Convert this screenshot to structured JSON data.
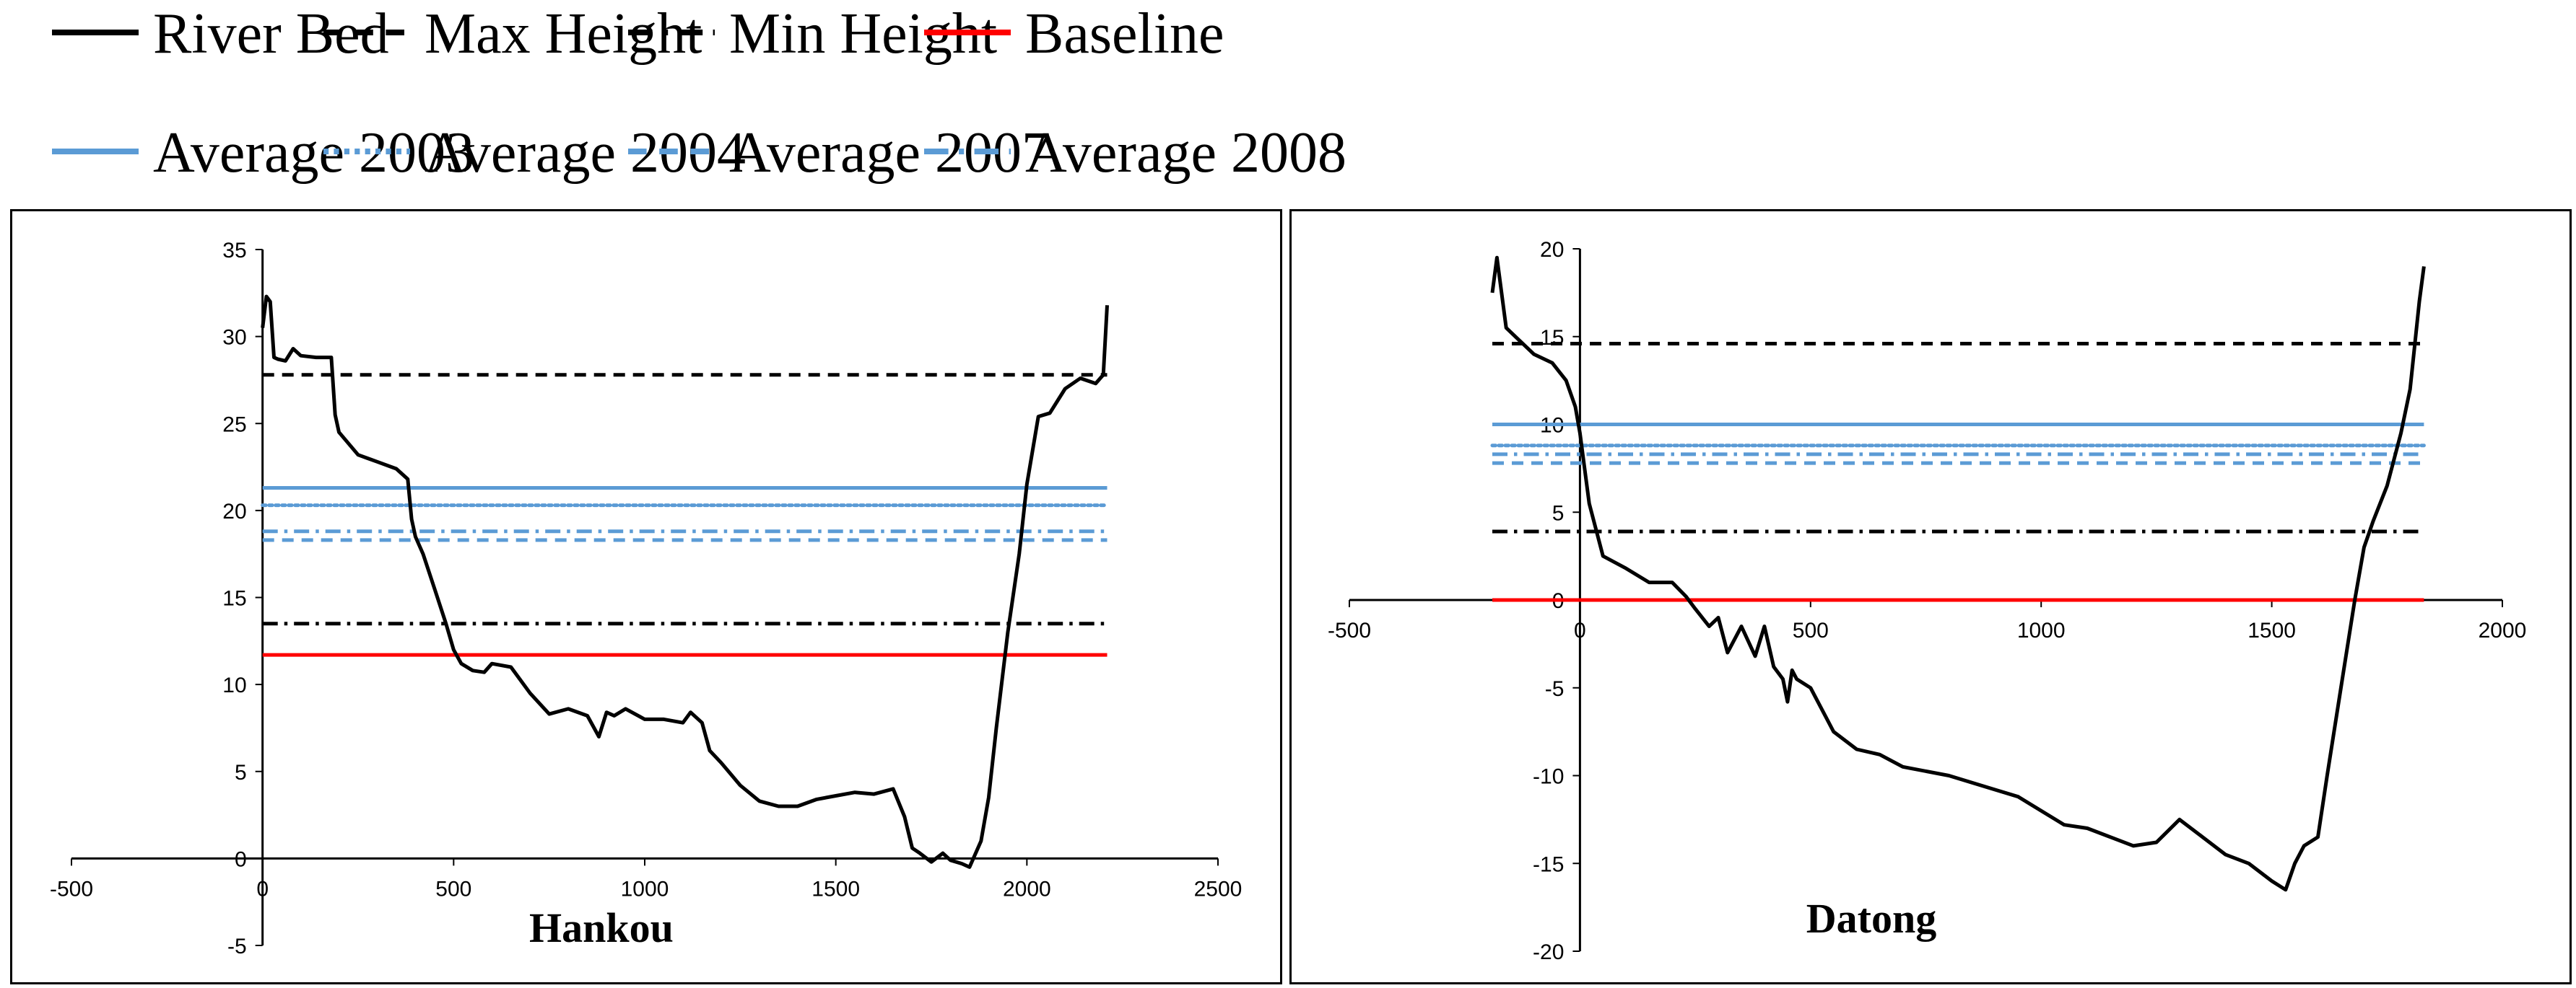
{
  "legend": [
    {
      "name": "River Bed",
      "color": "#000000",
      "dash": "solid"
    },
    {
      "name": "Max Height",
      "color": "#000000",
      "dash": "dashed"
    },
    {
      "name": "Min Height",
      "color": "#000000",
      "dash": "dashdot"
    },
    {
      "name": "Baseline",
      "color": "#ff0000",
      "dash": "solid"
    },
    {
      "name": "Average 2003",
      "color": "#5b9bd5",
      "dash": "solid"
    },
    {
      "name": "Average 2004",
      "color": "#5b9bd5",
      "dash": "dotted"
    },
    {
      "name": "Average 2007",
      "color": "#5b9bd5",
      "dash": "dashed"
    },
    {
      "name": "Average 2008",
      "color": "#5b9bd5",
      "dash": "dashdot"
    }
  ],
  "chart_data": [
    {
      "type": "line",
      "title": "Hankou",
      "xlim": [
        -500,
        2500
      ],
      "ylim": [
        -5,
        35
      ],
      "xticks": [
        -500,
        0,
        500,
        1000,
        1500,
        2000,
        2500
      ],
      "yticks": [
        -5,
        0,
        5,
        10,
        15,
        20,
        25,
        30,
        35
      ],
      "series": [
        {
          "name": "River Bed",
          "x": [
            0,
            10,
            20,
            30,
            40,
            60,
            80,
            100,
            140,
            170,
            180,
            190,
            200,
            250,
            300,
            350,
            380,
            390,
            400,
            420,
            450,
            480,
            500,
            520,
            550,
            580,
            600,
            650,
            700,
            750,
            800,
            850,
            880,
            900,
            920,
            950,
            1000,
            1050,
            1100,
            1120,
            1150,
            1170,
            1200,
            1250,
            1300,
            1350,
            1400,
            1450,
            1500,
            1550,
            1600,
            1650,
            1680,
            1700,
            1720,
            1750,
            1780,
            1800,
            1830,
            1850,
            1880,
            1900,
            1920,
            1950,
            1980,
            2000,
            2030,
            2060,
            2100,
            2140,
            2180,
            2200,
            2210
          ],
          "y": [
            30.5,
            32.3,
            32.0,
            28.8,
            28.7,
            28.6,
            29.3,
            28.9,
            28.8,
            28.8,
            28.8,
            25.5,
            24.5,
            23.2,
            22.8,
            22.4,
            21.8,
            19.5,
            18.5,
            17.5,
            15.5,
            13.5,
            12.0,
            11.2,
            10.8,
            10.7,
            11.2,
            11.0,
            9.5,
            8.3,
            8.6,
            8.2,
            7.0,
            8.4,
            8.2,
            8.6,
            8.0,
            8.0,
            7.8,
            8.4,
            7.8,
            6.2,
            5.5,
            4.2,
            3.3,
            3.0,
            3.0,
            3.4,
            3.6,
            3.8,
            3.7,
            4.0,
            2.4,
            0.6,
            0.3,
            -0.2,
            0.3,
            -0.1,
            -0.3,
            -0.5,
            1.0,
            3.5,
            7.5,
            13.0,
            17.5,
            21.5,
            25.4,
            25.6,
            27.0,
            27.6,
            27.3,
            27.8,
            31.8
          ]
        },
        {
          "name": "Max Height",
          "x": [
            0,
            2210
          ],
          "y": [
            27.8,
            27.8
          ]
        },
        {
          "name": "Min Height",
          "x": [
            0,
            2210
          ],
          "y": [
            13.5,
            13.5
          ]
        },
        {
          "name": "Baseline",
          "x": [
            0,
            2210
          ],
          "y": [
            11.7,
            11.7
          ]
        },
        {
          "name": "Average 2003",
          "x": [
            0,
            2210
          ],
          "y": [
            21.3,
            21.3
          ]
        },
        {
          "name": "Average 2004",
          "x": [
            0,
            2210
          ],
          "y": [
            20.3,
            20.3
          ]
        },
        {
          "name": "Average 2007",
          "x": [
            0,
            2210
          ],
          "y": [
            18.3,
            18.3
          ]
        },
        {
          "name": "Average 2008",
          "x": [
            0,
            2210
          ],
          "y": [
            18.8,
            18.8
          ]
        }
      ]
    },
    {
      "type": "line",
      "title": "Datong",
      "xlim": [
        -500,
        2000
      ],
      "ylim": [
        -20,
        20
      ],
      "xticks": [
        -500,
        0,
        500,
        1000,
        1500,
        2000
      ],
      "yticks": [
        -20,
        -15,
        -10,
        -5,
        0,
        5,
        10,
        15,
        20
      ],
      "series": [
        {
          "name": "River Bed",
          "x": [
            -190,
            -180,
            -160,
            -140,
            -100,
            -60,
            -30,
            -10,
            0,
            20,
            50,
            100,
            150,
            200,
            230,
            250,
            280,
            300,
            320,
            350,
            380,
            400,
            420,
            440,
            450,
            460,
            470,
            500,
            550,
            600,
            650,
            700,
            800,
            900,
            950,
            1000,
            1050,
            1100,
            1150,
            1200,
            1250,
            1300,
            1350,
            1400,
            1450,
            1500,
            1530,
            1550,
            1570,
            1600,
            1620,
            1650,
            1680,
            1700,
            1720,
            1750,
            1780,
            1800,
            1820,
            1830
          ],
          "y": [
            17.5,
            19.5,
            15.5,
            15.0,
            14.0,
            13.5,
            12.5,
            11.0,
            9.5,
            5.5,
            2.5,
            1.8,
            1.0,
            1.0,
            0.2,
            -0.5,
            -1.5,
            -1.0,
            -3.0,
            -1.5,
            -3.2,
            -1.5,
            -3.8,
            -4.5,
            -5.8,
            -4.0,
            -4.5,
            -5.0,
            -7.5,
            -8.5,
            -8.8,
            -9.5,
            -10.0,
            -10.8,
            -11.2,
            -12.0,
            -12.8,
            -13.0,
            -13.5,
            -14.0,
            -13.8,
            -12.5,
            -13.5,
            -14.5,
            -15.0,
            -16.0,
            -16.5,
            -15.0,
            -14.0,
            -13.5,
            -10.0,
            -5.0,
            0.0,
            3.0,
            4.5,
            6.5,
            9.5,
            12.0,
            17.0,
            19.0
          ]
        },
        {
          "name": "Max Height",
          "x": [
            -190,
            1830
          ],
          "y": [
            14.6,
            14.6
          ]
        },
        {
          "name": "Min Height",
          "x": [
            -190,
            1830
          ],
          "y": [
            3.9,
            3.9
          ]
        },
        {
          "name": "Baseline",
          "x": [
            -190,
            1830
          ],
          "y": [
            0.0,
            0.0
          ]
        },
        {
          "name": "Average 2003",
          "x": [
            -190,
            1830
          ],
          "y": [
            10.0,
            10.0
          ]
        },
        {
          "name": "Average 2004",
          "x": [
            -190,
            1830
          ],
          "y": [
            8.8,
            8.8
          ]
        },
        {
          "name": "Average 2007",
          "x": [
            -190,
            1830
          ],
          "y": [
            7.8,
            7.8
          ]
        },
        {
          "name": "Average 2008",
          "x": [
            -190,
            1830
          ],
          "y": [
            8.3,
            8.3
          ]
        }
      ]
    }
  ]
}
